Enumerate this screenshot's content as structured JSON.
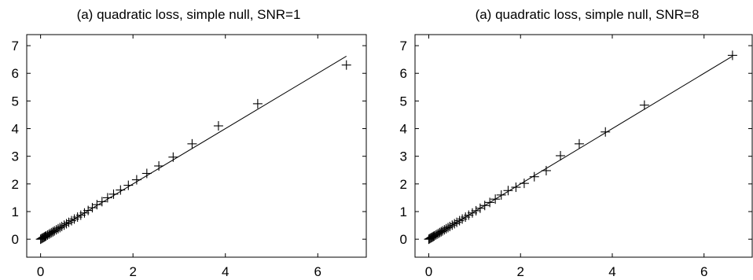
{
  "chart_data": [
    {
      "type": "scatter",
      "title": "(a)  quadratic loss, simple null, SNR=1",
      "xlabel": "",
      "ylabel": "",
      "xlim": [
        -0.3,
        7.05
      ],
      "ylim": [
        -0.65,
        7.4
      ],
      "xticks": [
        0,
        2,
        4,
        6
      ],
      "yticks": [
        0,
        1,
        2,
        3,
        4,
        5,
        6,
        7
      ],
      "grid": false,
      "reference_line": {
        "from": [
          0,
          0
        ],
        "to": [
          6.62,
          6.62
        ]
      },
      "series": [
        {
          "marker": "plus",
          "x": [
            0.0,
            0.02,
            0.04,
            0.06,
            0.08,
            0.1,
            0.12,
            0.15,
            0.18,
            0.21,
            0.24,
            0.27,
            0.3,
            0.34,
            0.38,
            0.42,
            0.46,
            0.51,
            0.56,
            0.61,
            0.67,
            0.73,
            0.8,
            0.87,
            0.95,
            1.03,
            1.12,
            1.22,
            1.33,
            1.45,
            1.58,
            1.73,
            1.9,
            2.08,
            2.3,
            2.56,
            2.87,
            3.28,
            3.85,
            4.7,
            6.62
          ],
          "y": [
            0.0,
            0.02,
            0.04,
            0.06,
            0.08,
            0.1,
            0.12,
            0.15,
            0.18,
            0.21,
            0.24,
            0.27,
            0.3,
            0.34,
            0.38,
            0.42,
            0.46,
            0.51,
            0.56,
            0.61,
            0.67,
            0.73,
            0.8,
            0.87,
            0.95,
            1.04,
            1.14,
            1.25,
            1.36,
            1.5,
            1.63,
            1.78,
            1.95,
            2.15,
            2.38,
            2.65,
            2.97,
            3.45,
            4.1,
            4.9,
            6.3
          ]
        }
      ]
    },
    {
      "type": "scatter",
      "title": "(a)  quadratic loss, simple null, SNR=8",
      "xlabel": "",
      "ylabel": "",
      "xlim": [
        -0.3,
        7.05
      ],
      "ylim": [
        -0.65,
        7.4
      ],
      "xticks": [
        0,
        2,
        4,
        6
      ],
      "yticks": [
        0,
        1,
        2,
        3,
        4,
        5,
        6,
        7
      ],
      "grid": false,
      "reference_line": {
        "from": [
          0,
          0
        ],
        "to": [
          6.62,
          6.62
        ]
      },
      "series": [
        {
          "marker": "plus",
          "x": [
            0.0,
            0.02,
            0.04,
            0.06,
            0.08,
            0.1,
            0.12,
            0.15,
            0.18,
            0.21,
            0.24,
            0.27,
            0.3,
            0.34,
            0.38,
            0.42,
            0.46,
            0.51,
            0.56,
            0.61,
            0.67,
            0.73,
            0.8,
            0.87,
            0.95,
            1.03,
            1.12,
            1.22,
            1.33,
            1.45,
            1.58,
            1.73,
            1.9,
            2.08,
            2.3,
            2.56,
            2.87,
            3.28,
            3.85,
            4.7,
            6.62
          ],
          "y": [
            0.0,
            0.02,
            0.04,
            0.06,
            0.08,
            0.1,
            0.12,
            0.15,
            0.18,
            0.21,
            0.24,
            0.27,
            0.3,
            0.34,
            0.38,
            0.42,
            0.46,
            0.51,
            0.56,
            0.61,
            0.67,
            0.73,
            0.8,
            0.87,
            0.95,
            1.03,
            1.12,
            1.22,
            1.33,
            1.45,
            1.6,
            1.76,
            1.88,
            2.02,
            2.26,
            2.48,
            3.02,
            3.45,
            3.88,
            4.85,
            6.65
          ]
        }
      ]
    }
  ]
}
